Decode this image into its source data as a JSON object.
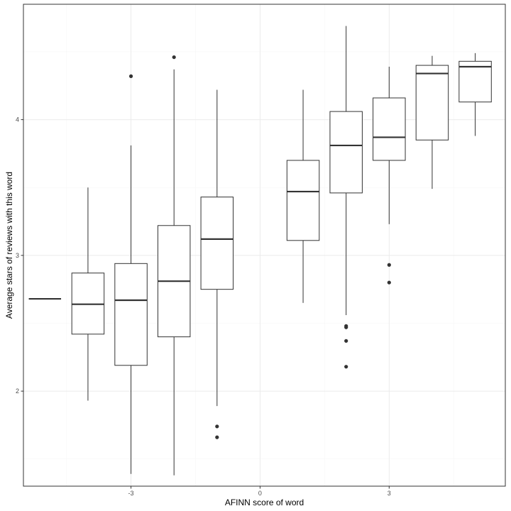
{
  "chart_data": {
    "type": "boxplot",
    "xlabel": "AFINN score of word",
    "ylabel": "Average stars of reviews with this word",
    "xlim": [
      -5.5,
      5.7
    ],
    "ylim": [
      1.3,
      4.85
    ],
    "x_ticks": [
      -3,
      0,
      3
    ],
    "x_tick_labels": [
      "-3",
      "0",
      "3"
    ],
    "y_ticks": [
      2,
      3,
      4
    ],
    "y_tick_labels": [
      "2",
      "3",
      "4"
    ],
    "x_minor": [
      -4.5,
      -1.5,
      1.5,
      4.5
    ],
    "y_minor": [
      1.5,
      2.5,
      3.5,
      4.5
    ],
    "grid": true,
    "box_width": 0.75,
    "boxes": [
      {
        "x": -5,
        "min": 2.68,
        "q1": 2.68,
        "median": 2.68,
        "q3": 2.68,
        "max": 2.68,
        "outliers": []
      },
      {
        "x": -4,
        "min": 1.93,
        "q1": 2.42,
        "median": 2.64,
        "q3": 2.87,
        "max": 3.5,
        "outliers": []
      },
      {
        "x": -3,
        "min": 1.39,
        "q1": 2.19,
        "median": 2.67,
        "q3": 2.94,
        "max": 3.81,
        "outliers": [
          4.32
        ]
      },
      {
        "x": -2,
        "min": 1.38,
        "q1": 2.4,
        "median": 2.81,
        "q3": 3.22,
        "max": 4.37,
        "outliers": [
          4.46
        ]
      },
      {
        "x": -1,
        "min": 1.89,
        "q1": 2.75,
        "median": 3.12,
        "q3": 3.43,
        "max": 4.22,
        "outliers": [
          1.74,
          1.66
        ]
      },
      {
        "x": 1,
        "min": 2.65,
        "q1": 3.11,
        "median": 3.47,
        "q3": 3.7,
        "max": 4.22,
        "outliers": []
      },
      {
        "x": 2,
        "min": 2.56,
        "q1": 3.46,
        "median": 3.81,
        "q3": 4.06,
        "max": 4.69,
        "outliers": [
          2.48,
          2.47,
          2.37,
          2.18
        ]
      },
      {
        "x": 3,
        "min": 3.23,
        "q1": 3.7,
        "median": 3.87,
        "q3": 4.16,
        "max": 4.39,
        "outliers": [
          2.93,
          2.8
        ]
      },
      {
        "x": 4,
        "min": 3.49,
        "q1": 3.85,
        "median": 4.34,
        "q3": 4.4,
        "max": 4.47,
        "outliers": []
      },
      {
        "x": 5,
        "min": 3.88,
        "q1": 4.13,
        "median": 4.39,
        "q3": 4.43,
        "max": 4.49,
        "outliers": []
      }
    ],
    "colors": {
      "panel_border": "#333333",
      "grid_major": "#ebebeb",
      "grid_minor": "#f5f5f5",
      "box_fill": "#ffffff",
      "box_stroke": "#333333",
      "tick_text": "#4d4d4d",
      "axis_title": "#000000"
    }
  }
}
